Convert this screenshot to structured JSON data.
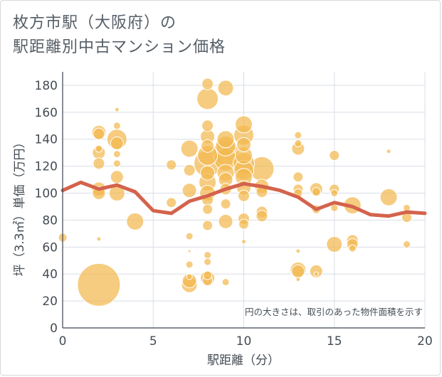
{
  "title_lines": [
    "枚方市駅（大阪府）の",
    "駅距離別中古マンション価格"
  ],
  "colors": {
    "bubble": "#f2b94f",
    "line": "#d4634c",
    "grid": "#d8dde6",
    "text": "#444c54"
  },
  "chart_data": {
    "type": "scatter",
    "title": "枚方市駅（大阪府）の駅距離別中古マンション価格",
    "xlabel": "駅距離（分）",
    "ylabel": "坪（3.3㎡）単価（万円）",
    "xlim": [
      0,
      20
    ],
    "ylim": [
      0,
      190
    ],
    "xticks": [
      0,
      5,
      10,
      15,
      20
    ],
    "yticks": [
      0,
      20,
      40,
      60,
      80,
      100,
      120,
      140,
      160,
      180
    ],
    "grid": true,
    "annotation": "円の大きさは、取引のあった物件面積を示す",
    "bubbles": [
      {
        "x": 0,
        "y": 67,
        "s": 6
      },
      {
        "x": 2,
        "y": 32,
        "s": 30
      },
      {
        "x": 2,
        "y": 145,
        "s": 10
      },
      {
        "x": 2,
        "y": 144,
        "s": 8
      },
      {
        "x": 2,
        "y": 130,
        "s": 9
      },
      {
        "x": 2,
        "y": 122,
        "s": 8
      },
      {
        "x": 2,
        "y": 103,
        "s": 10
      },
      {
        "x": 2,
        "y": 100,
        "s": 9
      },
      {
        "x": 2,
        "y": 133,
        "s": 5
      },
      {
        "x": 2,
        "y": 66,
        "s": 3
      },
      {
        "x": 3,
        "y": 162,
        "s": 3
      },
      {
        "x": 3,
        "y": 150,
        "s": 5
      },
      {
        "x": 3,
        "y": 140,
        "s": 14
      },
      {
        "x": 3,
        "y": 137,
        "s": 9
      },
      {
        "x": 3,
        "y": 129,
        "s": 5
      },
      {
        "x": 3,
        "y": 122,
        "s": 5
      },
      {
        "x": 3,
        "y": 112,
        "s": 9
      },
      {
        "x": 3,
        "y": 100,
        "s": 11
      },
      {
        "x": 4,
        "y": 79,
        "s": 12
      },
      {
        "x": 6,
        "y": 121,
        "s": 7
      },
      {
        "x": 6,
        "y": 93,
        "s": 7
      },
      {
        "x": 7,
        "y": 133,
        "s": 12
      },
      {
        "x": 7,
        "y": 117,
        "s": 8
      },
      {
        "x": 7,
        "y": 102,
        "s": 10
      },
      {
        "x": 7,
        "y": 68,
        "s": 5
      },
      {
        "x": 7,
        "y": 47,
        "s": 5
      },
      {
        "x": 7,
        "y": 38,
        "s": 4
      },
      {
        "x": 7,
        "y": 35,
        "s": 10
      },
      {
        "x": 7,
        "y": 32,
        "s": 11
      },
      {
        "x": 7,
        "y": 57,
        "s": 2
      },
      {
        "x": 8,
        "y": 181,
        "s": 8
      },
      {
        "x": 8,
        "y": 170,
        "s": 15
      },
      {
        "x": 8,
        "y": 150,
        "s": 8
      },
      {
        "x": 8,
        "y": 142,
        "s": 10
      },
      {
        "x": 8,
        "y": 135,
        "s": 9
      },
      {
        "x": 8,
        "y": 128,
        "s": 14
      },
      {
        "x": 8,
        "y": 122,
        "s": 19
      },
      {
        "x": 8,
        "y": 115,
        "s": 10
      },
      {
        "x": 8,
        "y": 108,
        "s": 12
      },
      {
        "x": 8,
        "y": 100,
        "s": 11
      },
      {
        "x": 8,
        "y": 95,
        "s": 8
      },
      {
        "x": 8,
        "y": 88,
        "s": 7
      },
      {
        "x": 8,
        "y": 76,
        "s": 7
      },
      {
        "x": 8,
        "y": 54,
        "s": 5
      },
      {
        "x": 8,
        "y": 49,
        "s": 5
      },
      {
        "x": 8,
        "y": 39,
        "s": 6
      },
      {
        "x": 8,
        "y": 37,
        "s": 10
      },
      {
        "x": 8,
        "y": 35,
        "s": 7
      },
      {
        "x": 9,
        "y": 178,
        "s": 11
      },
      {
        "x": 9,
        "y": 140,
        "s": 12
      },
      {
        "x": 9,
        "y": 135,
        "s": 14
      },
      {
        "x": 9,
        "y": 130,
        "s": 18
      },
      {
        "x": 9,
        "y": 125,
        "s": 16
      },
      {
        "x": 9,
        "y": 115,
        "s": 12
      },
      {
        "x": 9,
        "y": 110,
        "s": 10
      },
      {
        "x": 9,
        "y": 103,
        "s": 8
      },
      {
        "x": 9,
        "y": 92,
        "s": 7
      },
      {
        "x": 9,
        "y": 79,
        "s": 10
      },
      {
        "x": 9,
        "y": 34,
        "s": 5
      },
      {
        "x": 10,
        "y": 151,
        "s": 12
      },
      {
        "x": 10,
        "y": 143,
        "s": 14
      },
      {
        "x": 10,
        "y": 136,
        "s": 10
      },
      {
        "x": 10,
        "y": 128,
        "s": 12
      },
      {
        "x": 10,
        "y": 122,
        "s": 15
      },
      {
        "x": 10,
        "y": 117,
        "s": 14
      },
      {
        "x": 10,
        "y": 112,
        "s": 12
      },
      {
        "x": 10,
        "y": 104,
        "s": 10
      },
      {
        "x": 10,
        "y": 98,
        "s": 8
      },
      {
        "x": 10,
        "y": 81,
        "s": 8
      },
      {
        "x": 10,
        "y": 77,
        "s": 7
      },
      {
        "x": 10,
        "y": 64,
        "s": 3
      },
      {
        "x": 11,
        "y": 118,
        "s": 17
      },
      {
        "x": 11,
        "y": 105,
        "s": 10
      },
      {
        "x": 11,
        "y": 101,
        "s": 8
      },
      {
        "x": 11,
        "y": 86,
        "s": 8
      },
      {
        "x": 11,
        "y": 83,
        "s": 8
      },
      {
        "x": 13,
        "y": 143,
        "s": 5
      },
      {
        "x": 13,
        "y": 137,
        "s": 5
      },
      {
        "x": 13,
        "y": 133,
        "s": 9
      },
      {
        "x": 13,
        "y": 112,
        "s": 7
      },
      {
        "x": 13,
        "y": 103,
        "s": 7
      },
      {
        "x": 13,
        "y": 100,
        "s": 6
      },
      {
        "x": 13,
        "y": 57,
        "s": 3
      },
      {
        "x": 13,
        "y": 43,
        "s": 11
      },
      {
        "x": 13,
        "y": 42,
        "s": 9
      },
      {
        "x": 13,
        "y": 36,
        "s": 3
      },
      {
        "x": 14,
        "y": 103,
        "s": 9
      },
      {
        "x": 14,
        "y": 101,
        "s": 6
      },
      {
        "x": 14,
        "y": 88,
        "s": 6
      },
      {
        "x": 14,
        "y": 42,
        "s": 9
      },
      {
        "x": 14,
        "y": 40,
        "s": 3
      },
      {
        "x": 15,
        "y": 128,
        "s": 7
      },
      {
        "x": 15,
        "y": 103,
        "s": 7
      },
      {
        "x": 15,
        "y": 100,
        "s": 5
      },
      {
        "x": 15,
        "y": 89,
        "s": 5
      },
      {
        "x": 15,
        "y": 62,
        "s": 11
      },
      {
        "x": 16,
        "y": 91,
        "s": 12
      },
      {
        "x": 16,
        "y": 65,
        "s": 8
      },
      {
        "x": 16,
        "y": 62,
        "s": 8
      },
      {
        "x": 16,
        "y": 59,
        "s": 5
      },
      {
        "x": 18,
        "y": 131,
        "s": 3
      },
      {
        "x": 18,
        "y": 97,
        "s": 12
      },
      {
        "x": 19,
        "y": 89,
        "s": 5
      },
      {
        "x": 19,
        "y": 82,
        "s": 7
      },
      {
        "x": 19,
        "y": 62,
        "s": 5
      }
    ],
    "series": [
      {
        "x": [
          0,
          1,
          2,
          3,
          4,
          5,
          6,
          7,
          8,
          9,
          10,
          11,
          12,
          13,
          14,
          15,
          16,
          17,
          18,
          19,
          20
        ],
        "values": [
          102,
          108,
          103,
          106,
          101,
          87,
          85,
          94,
          98,
          103,
          107,
          105,
          102,
          97,
          88,
          93,
          90,
          84,
          83,
          86,
          85
        ]
      }
    ]
  }
}
